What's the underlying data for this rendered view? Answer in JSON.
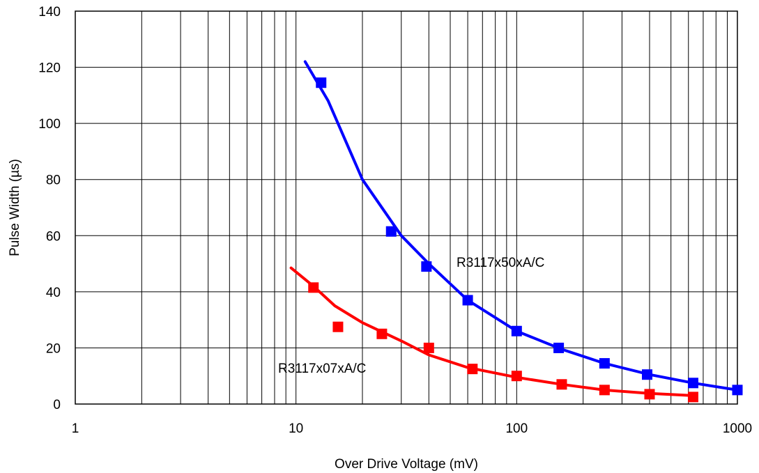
{
  "chart_data": {
    "type": "scatter",
    "x_scale": "log",
    "xlim": [
      1,
      1000
    ],
    "ylim": [
      0,
      140
    ],
    "grid": true,
    "xlabel": "Over Drive Voltage (mV)",
    "ylabel": "Pulse Width (µs)",
    "x_tick_labels": [
      "1",
      "10",
      "100",
      "1000"
    ],
    "x_tick_values": [
      1,
      10,
      100,
      1000
    ],
    "y_tick_labels": [
      "0",
      "20",
      "40",
      "60",
      "80",
      "100",
      "120",
      "140"
    ],
    "y_tick_values": [
      0,
      20,
      40,
      60,
      80,
      100,
      120,
      140
    ],
    "series": [
      {
        "name": "R3117x50xA/C",
        "color": "#0000ff",
        "points": [
          {
            "x": 13,
            "y": 114.5
          },
          {
            "x": 27,
            "y": 61.5
          },
          {
            "x": 39,
            "y": 49
          },
          {
            "x": 60,
            "y": 37
          },
          {
            "x": 100,
            "y": 26
          },
          {
            "x": 155,
            "y": 20
          },
          {
            "x": 250,
            "y": 14.5
          },
          {
            "x": 390,
            "y": 10.5
          },
          {
            "x": 630,
            "y": 7.5
          },
          {
            "x": 1000,
            "y": 5
          }
        ],
        "fit": [
          {
            "x": 11,
            "y": 122
          },
          {
            "x": 14,
            "y": 108
          },
          {
            "x": 20,
            "y": 80
          },
          {
            "x": 30,
            "y": 60
          },
          {
            "x": 40,
            "y": 50
          },
          {
            "x": 60,
            "y": 37
          },
          {
            "x": 100,
            "y": 26
          },
          {
            "x": 160,
            "y": 19.5
          },
          {
            "x": 250,
            "y": 14.5
          },
          {
            "x": 400,
            "y": 10.5
          },
          {
            "x": 630,
            "y": 7.5
          },
          {
            "x": 1000,
            "y": 5
          }
        ]
      },
      {
        "name": "R3117x07xA/C",
        "color": "#ff0000",
        "points": [
          {
            "x": 12,
            "y": 41.5
          },
          {
            "x": 15.5,
            "y": 27.5
          },
          {
            "x": 24.5,
            "y": 25
          },
          {
            "x": 40,
            "y": 20
          },
          {
            "x": 63,
            "y": 12.5
          },
          {
            "x": 100,
            "y": 10
          },
          {
            "x": 160,
            "y": 7
          },
          {
            "x": 250,
            "y": 5
          },
          {
            "x": 400,
            "y": 3.5
          },
          {
            "x": 630,
            "y": 2.5
          }
        ],
        "fit": [
          {
            "x": 9.5,
            "y": 48.5
          },
          {
            "x": 12,
            "y": 42
          },
          {
            "x": 15,
            "y": 35
          },
          {
            "x": 20,
            "y": 29
          },
          {
            "x": 30,
            "y": 22.5
          },
          {
            "x": 40,
            "y": 17.5
          },
          {
            "x": 60,
            "y": 13
          },
          {
            "x": 100,
            "y": 9.5
          },
          {
            "x": 160,
            "y": 7
          },
          {
            "x": 250,
            "y": 5
          },
          {
            "x": 400,
            "y": 3.8
          },
          {
            "x": 630,
            "y": 3
          }
        ]
      }
    ]
  }
}
